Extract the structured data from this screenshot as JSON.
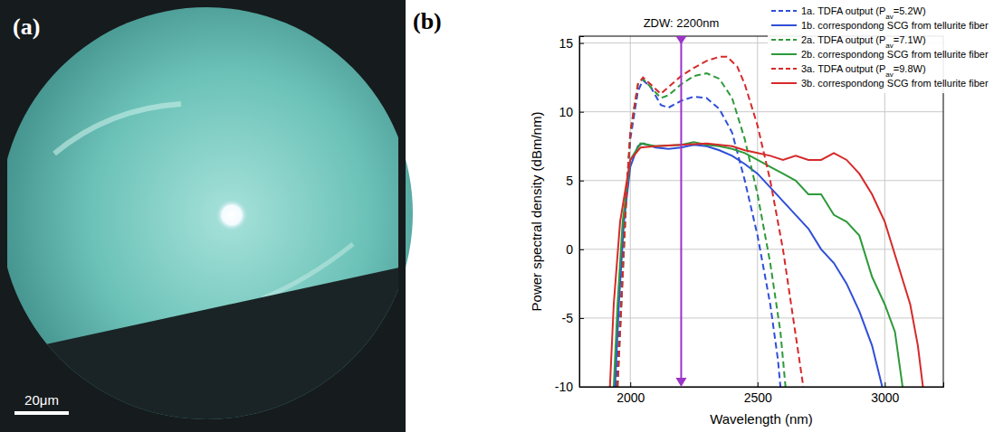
{
  "panel_a": {
    "label": "(a)",
    "scale_bar": "20μm"
  },
  "chart_data": {
    "type": "line",
    "label": "(b)",
    "x_label": "Wavelength (nm)",
    "y_label": "Power spectral density (dBm/nm)",
    "annotations": [
      {
        "text": "ZDW: 2200nm",
        "x": 2200
      }
    ],
    "xlim": [
      1800,
      3230
    ],
    "xticks": [
      2000,
      2500,
      3000
    ],
    "ylim": [
      -10,
      15.5
    ],
    "yticks": [
      -10,
      -5,
      0,
      5,
      10,
      15
    ],
    "grid": true,
    "legend": "upper right",
    "series": [
      {
        "name": "1a. TDFA output (Pav=5.2W)",
        "color": "#2f4fd8",
        "line_style": "dashed",
        "x": [
          1945,
          1960,
          1980,
          2000,
          2030,
          2050,
          2080,
          2120,
          2150,
          2200,
          2250,
          2300,
          2350,
          2400,
          2450,
          2500,
          2550,
          2580,
          2590
        ],
        "values": [
          -10,
          -5,
          3,
          8,
          11.5,
          12.3,
          11.8,
          10.5,
          10.3,
          10.8,
          11.1,
          11.0,
          10.2,
          8.5,
          5,
          1,
          -4,
          -8,
          -10
        ]
      },
      {
        "name": "1b. correspondong SCG from tellurite fiber",
        "color": "#2f4fd8",
        "line_style": "solid",
        "x": [
          1940,
          1955,
          1975,
          2000,
          2030,
          2050,
          2100,
          2150,
          2200,
          2250,
          2300,
          2350,
          2400,
          2450,
          2500,
          2550,
          2600,
          2650,
          2700,
          2750,
          2800,
          2850,
          2900,
          2950,
          2990
        ],
        "values": [
          -10,
          -4,
          2,
          6,
          7.5,
          7.7,
          7.4,
          7.3,
          7.4,
          7.6,
          7.5,
          7.2,
          6.8,
          6.2,
          5.5,
          4.5,
          3.5,
          2.5,
          1.5,
          0,
          -1,
          -2.5,
          -4.5,
          -7,
          -10
        ]
      },
      {
        "name": "2a. TDFA output (Pav=7.1W)",
        "color": "#2e9a3a",
        "line_style": "dashed",
        "x": [
          1950,
          1965,
          1985,
          2000,
          2030,
          2050,
          2080,
          2120,
          2150,
          2200,
          2250,
          2300,
          2350,
          2400,
          2450,
          2500,
          2550,
          2590,
          2610
        ],
        "values": [
          -10,
          -4,
          4,
          8.5,
          12,
          12.4,
          11.8,
          11,
          11.2,
          12,
          12.6,
          12.8,
          12.4,
          11.0,
          8,
          4,
          -1,
          -6,
          -10
        ]
      },
      {
        "name": "2b. correspondong SCG from tellurite fiber",
        "color": "#2e9a3a",
        "line_style": "solid",
        "x": [
          1935,
          1950,
          1970,
          2000,
          2040,
          2100,
          2200,
          2250,
          2300,
          2350,
          2400,
          2450,
          2500,
          2550,
          2600,
          2650,
          2700,
          2750,
          2800,
          2850,
          2900,
          2950,
          3000,
          3040,
          3070
        ],
        "values": [
          -10,
          -4,
          2,
          6.5,
          7.7,
          7.5,
          7.6,
          7.8,
          7.6,
          7.5,
          7.3,
          7,
          6.5,
          6,
          5.5,
          5,
          4,
          4,
          2.5,
          2,
          1,
          -2,
          -4,
          -6,
          -10
        ]
      },
      {
        "name": "3a. TDFA output (Pav=9.8W)",
        "color": "#d62a2a",
        "line_style": "dashed",
        "x": [
          1950,
          1965,
          1985,
          2000,
          2030,
          2050,
          2080,
          2120,
          2150,
          2200,
          2250,
          2300,
          2350,
          2380,
          2420,
          2450,
          2500,
          2550,
          2600,
          2640,
          2680
        ],
        "values": [
          -10,
          -4,
          4,
          8.5,
          12,
          12.5,
          12,
          11.3,
          11.8,
          12.6,
          13.2,
          13.7,
          14.0,
          14.0,
          13.3,
          12,
          9,
          5,
          0,
          -5,
          -10
        ]
      },
      {
        "name": "3b. correspondong SCG from tellurite fiber",
        "color": "#d62a2a",
        "line_style": "solid",
        "x": [
          1920,
          1935,
          1960,
          2000,
          2040,
          2100,
          2200,
          2300,
          2400,
          2450,
          2500,
          2550,
          2600,
          2650,
          2700,
          2750,
          2800,
          2850,
          2900,
          2950,
          3000,
          3050,
          3100,
          3130,
          3150
        ],
        "values": [
          -10,
          -4,
          2,
          6.5,
          7.4,
          7.5,
          7.6,
          7.7,
          7.5,
          7.2,
          7.0,
          6.8,
          6.5,
          6.8,
          6.5,
          6.5,
          7.0,
          6.5,
          5.5,
          4,
          2,
          -1,
          -4,
          -7,
          -10
        ]
      }
    ]
  }
}
